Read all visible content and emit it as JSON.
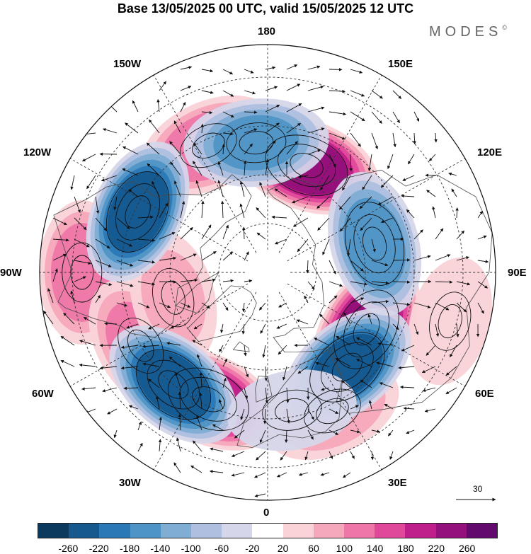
{
  "title": "Base 13/05/2025 00 UTC, valid 15/05/2025 12 UTC",
  "brand": "MODES",
  "brand_mark": "©",
  "longitude_labels": {
    "top": "180",
    "bottom": "0",
    "left": "90W",
    "right": "90E",
    "upper_left_outer": "150W",
    "upper_left_inner": "120W",
    "upper_right_outer": "150E",
    "upper_right_inner": "120E",
    "lower_left_inner": "60W",
    "lower_left_outer": "30W",
    "lower_right_inner": "60E",
    "lower_right_outer": "30E"
  },
  "reference_vector": {
    "label": "30"
  },
  "colorbar": {
    "ticks": [
      "-260",
      "-220",
      "-180",
      "-140",
      "-100",
      "-60",
      "-20",
      "20",
      "60",
      "100",
      "140",
      "180",
      "220",
      "260"
    ],
    "colors": [
      "#0b3a5e",
      "#15598f",
      "#2a78b6",
      "#4f94c6",
      "#7fadd4",
      "#aebfdf",
      "#d6d6ea",
      "#ffffff",
      "#f9d3d8",
      "#f5a8bb",
      "#ee77a8",
      "#e0489a",
      "#be1f8a",
      "#94107a",
      "#630a6e"
    ]
  },
  "anomaly_centers": [
    {
      "lon": -25,
      "lat": 47,
      "value": 210
    },
    {
      "lon": 60,
      "lat": 55,
      "value": 240
    },
    {
      "lon": 160,
      "lat": 55,
      "value": 230
    },
    {
      "lon": -90,
      "lat": 33,
      "value": 120
    },
    {
      "lon": -155,
      "lat": 47,
      "value": 130
    },
    {
      "lon": -60,
      "lat": 45,
      "value": 110
    },
    {
      "lon": -75,
      "lat": 60,
      "value": 60
    },
    {
      "lon": 25,
      "lat": 43,
      "value": 90
    },
    {
      "lon": 75,
      "lat": 32,
      "value": 40
    },
    {
      "lon": 40,
      "lat": 52,
      "value": -220
    },
    {
      "lon": -40,
      "lat": 45,
      "value": -230
    },
    {
      "lon": -115,
      "lat": 46,
      "value": -230
    },
    {
      "lon": 105,
      "lat": 56,
      "value": -160
    },
    {
      "lon": -175,
      "lat": 50,
      "value": -140
    },
    {
      "lon": 10,
      "lat": 47,
      "value": -40
    }
  ]
}
